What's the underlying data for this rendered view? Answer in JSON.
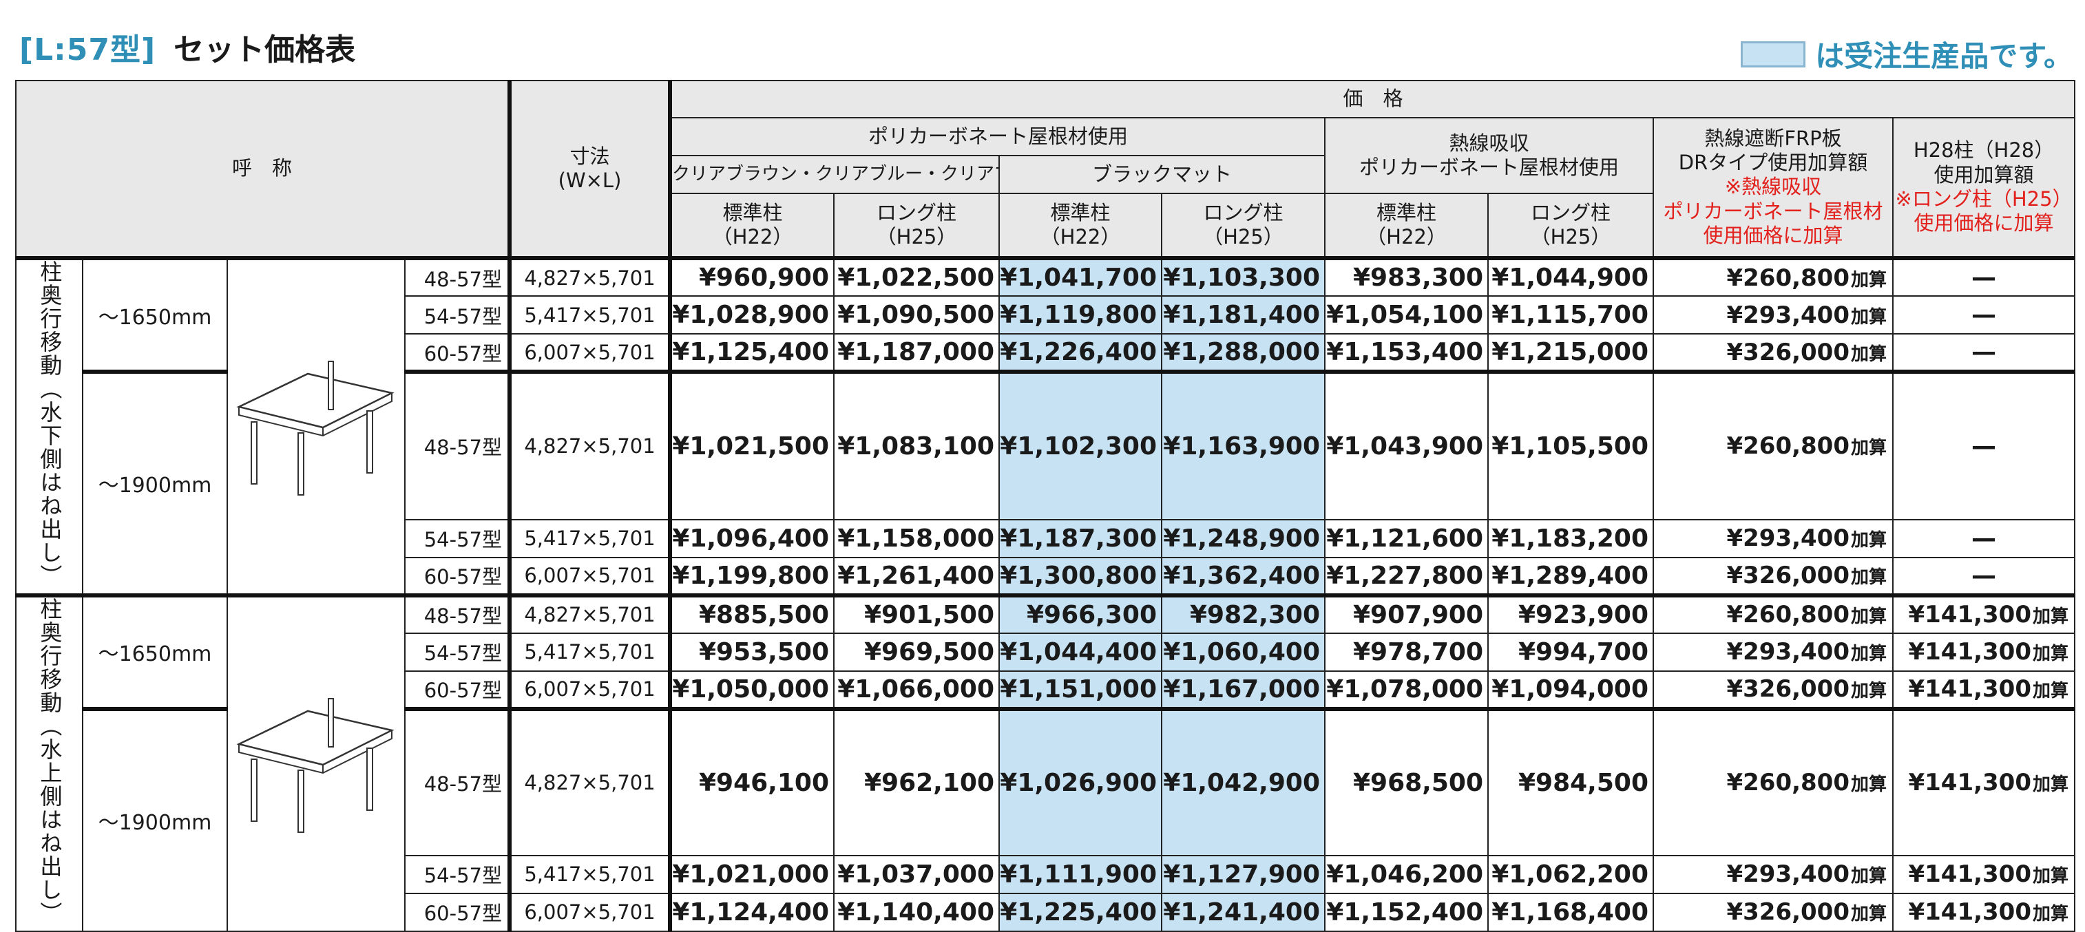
{
  "title": {
    "code": "[L:57型]",
    "text": "セット価格表"
  },
  "legend": {
    "text": "は受注生産品です。",
    "color": "#c7e2f3"
  },
  "header": {
    "name": "呼　称",
    "size": "寸法",
    "size_sub": "(W×L)",
    "price": "価　格",
    "poly": "ポリカーボネート屋根材使用",
    "clear": "クリアブラウン・クリアブルー・クリアマット",
    "black": "ブラックマット",
    "heat_l1": "熱線吸収",
    "heat_l2": "ポリカーボネート屋根材使用",
    "frp_l1": "熱線遮断FRP板",
    "frp_l2": "DRタイプ使用加算額",
    "frp_note1": "※熱線吸収",
    "frp_note2": "ポリカーボネート屋根材",
    "frp_note3": "使用価格に加算",
    "h28_l1": "H28柱（H28）",
    "h28_l2": "使用加算額",
    "h28_note1": "※ロング柱（H25）",
    "h28_note2": "使用価格に加算",
    "std": "標準柱",
    "std_sub": "（H22）",
    "long": "ロング柱",
    "long_sub": "（H25）"
  },
  "groups": [
    {
      "label": "柱奥行移動",
      "label_sub": "（水下側はね出し）",
      "subgroups": [
        {
          "length": "～1650mm",
          "rows": [
            {
              "model": "48-57型",
              "size": "4,827×5,701",
              "prices": [
                "¥960,900",
                "¥1,022,500",
                "¥1,041,700",
                "¥1,103,300",
                "¥983,300",
                "¥1,044,900"
              ],
              "frp": "¥260,800",
              "h28": "—"
            },
            {
              "model": "54-57型",
              "size": "5,417×5,701",
              "prices": [
                "¥1,028,900",
                "¥1,090,500",
                "¥1,119,800",
                "¥1,181,400",
                "¥1,054,100",
                "¥1,115,700"
              ],
              "frp": "¥293,400",
              "h28": "—"
            },
            {
              "model": "60-57型",
              "size": "6,007×5,701",
              "prices": [
                "¥1,125,400",
                "¥1,187,000",
                "¥1,226,400",
                "¥1,288,000",
                "¥1,153,400",
                "¥1,215,000"
              ],
              "frp": "¥326,000",
              "h28": "—"
            }
          ]
        },
        {
          "length": "～1900mm",
          "rows": [
            {
              "model": "48-57型",
              "size": "4,827×5,701",
              "prices": [
                "¥1,021,500",
                "¥1,083,100",
                "¥1,102,300",
                "¥1,163,900",
                "¥1,043,900",
                "¥1,105,500"
              ],
              "frp": "¥260,800",
              "h28": "—"
            },
            {
              "model": "54-57型",
              "size": "5,417×5,701",
              "prices": [
                "¥1,096,400",
                "¥1,158,000",
                "¥1,187,300",
                "¥1,248,900",
                "¥1,121,600",
                "¥1,183,200"
              ],
              "frp": "¥293,400",
              "h28": "—"
            },
            {
              "model": "60-57型",
              "size": "6,007×5,701",
              "prices": [
                "¥1,199,800",
                "¥1,261,400",
                "¥1,300,800",
                "¥1,362,400",
                "¥1,227,800",
                "¥1,289,400"
              ],
              "frp": "¥326,000",
              "h28": "—"
            }
          ]
        }
      ]
    },
    {
      "label": "柱奥行移動",
      "label_sub": "（水上側はね出し）",
      "subgroups": [
        {
          "length": "～1650mm",
          "rows": [
            {
              "model": "48-57型",
              "size": "4,827×5,701",
              "prices": [
                "¥885,500",
                "¥901,500",
                "¥966,300",
                "¥982,300",
                "¥907,900",
                "¥923,900"
              ],
              "frp": "¥260,800",
              "h28": "¥141,300"
            },
            {
              "model": "54-57型",
              "size": "5,417×5,701",
              "prices": [
                "¥953,500",
                "¥969,500",
                "¥1,044,400",
                "¥1,060,400",
                "¥978,700",
                "¥994,700"
              ],
              "frp": "¥293,400",
              "h28": "¥141,300"
            },
            {
              "model": "60-57型",
              "size": "6,007×5,701",
              "prices": [
                "¥1,050,000",
                "¥1,066,000",
                "¥1,151,000",
                "¥1,167,000",
                "¥1,078,000",
                "¥1,094,000"
              ],
              "frp": "¥326,000",
              "h28": "¥141,300"
            }
          ]
        },
        {
          "length": "～1900mm",
          "rows": [
            {
              "model": "48-57型",
              "size": "4,827×5,701",
              "prices": [
                "¥946,100",
                "¥962,100",
                "¥1,026,900",
                "¥1,042,900",
                "¥968,500",
                "¥984,500"
              ],
              "frp": "¥260,800",
              "h28": "¥141,300"
            },
            {
              "model": "54-57型",
              "size": "5,417×5,701",
              "prices": [
                "¥1,021,000",
                "¥1,037,000",
                "¥1,111,900",
                "¥1,127,900",
                "¥1,046,200",
                "¥1,062,200"
              ],
              "frp": "¥293,400",
              "h28": "¥141,300"
            },
            {
              "model": "60-57型",
              "size": "6,007×5,701",
              "prices": [
                "¥1,124,400",
                "¥1,140,400",
                "¥1,225,400",
                "¥1,241,400",
                "¥1,152,400",
                "¥1,168,400"
              ],
              "frp": "¥326,000",
              "h28": "¥141,300"
            }
          ]
        }
      ]
    }
  ],
  "add_unit": "加算"
}
